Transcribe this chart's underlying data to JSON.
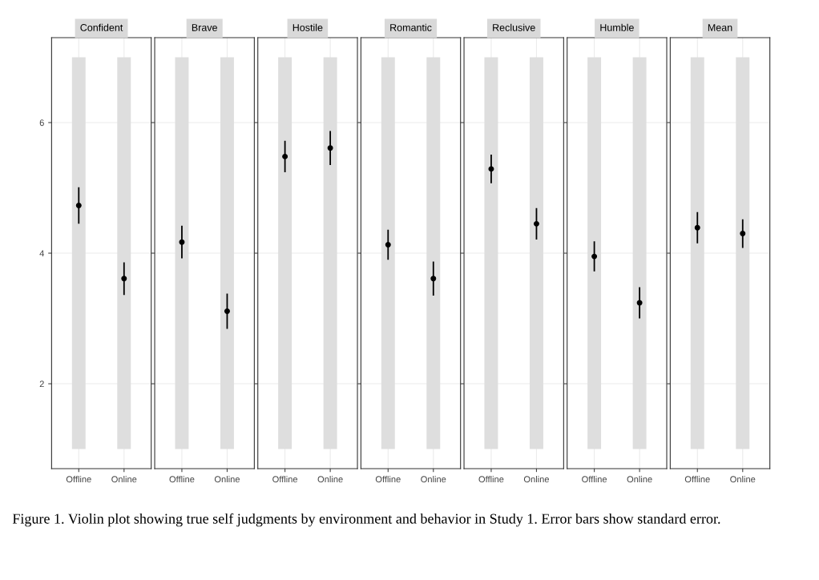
{
  "chart_data": [
    {
      "type": "scatter",
      "title": "Confident",
      "categories": [
        "Offline",
        "Online"
      ],
      "series": [
        {
          "color": "#000000",
          "values": [
            4.73,
            3.61
          ],
          "errors": [
            0.28,
            0.25
          ]
        }
      ],
      "ylim": [
        0.7,
        7.3
      ],
      "yticks": [
        2,
        4,
        6
      ],
      "grid": true,
      "marker": "circle",
      "annotations": [
        "Figure 1. Violin plot showing true self judgments by environment and behavior in Study 1. Error bars show standard error."
      ]
    },
    {
      "type": "scatter",
      "title": "Brave",
      "categories": [
        "Offline",
        "Online"
      ],
      "series": [
        {
          "color": "#000000",
          "values": [
            4.17,
            3.11
          ],
          "errors": [
            0.25,
            0.27
          ]
        }
      ],
      "ylim": [
        0.7,
        7.3
      ],
      "yticks": [
        2,
        4,
        6
      ],
      "grid": true,
      "marker": "circle",
      "tick_labels": "x"
    },
    {
      "type": "scatter",
      "title": "Hostile",
      "categories": [
        "Offline",
        "Online"
      ],
      "series": [
        {
          "color": "#000000",
          "values": [
            5.48,
            5.61
          ],
          "errors": [
            0.24,
            0.26
          ]
        }
      ],
      "ylim": [
        0.7,
        7.3
      ],
      "yticks": [
        2,
        4,
        6
      ],
      "grid": true,
      "marker": "circle",
      "tick_labels": "x"
    },
    {
      "type": "scatter",
      "title": "Romantic",
      "categories": [
        "Offline",
        "Online"
      ],
      "series": [
        {
          "color": "#000000",
          "values": [
            4.13,
            3.61
          ],
          "errors": [
            0.23,
            0.26
          ]
        }
      ],
      "ylim": [
        0.7,
        7.3
      ],
      "yticks": [
        2,
        4,
        6
      ],
      "grid": true,
      "marker": "circle",
      "tick_labels": "x"
    },
    {
      "type": "scatter",
      "title": "Reclusive",
      "categories": [
        "Offline",
        "Online"
      ],
      "series": [
        {
          "color": "#000000",
          "values": [
            5.29,
            4.45
          ],
          "errors": [
            0.22,
            0.24
          ]
        }
      ],
      "ylim": [
        0.7,
        7.3
      ],
      "yticks": [
        2,
        4,
        6
      ],
      "grid": true,
      "marker": "circle",
      "tick_labels": "x"
    },
    {
      "type": "scatter",
      "title": "Humble",
      "categories": [
        "Offline",
        "Online"
      ],
      "series": [
        {
          "color": "#000000",
          "values": [
            3.95,
            3.24
          ],
          "errors": [
            0.23,
            0.24
          ]
        }
      ],
      "ylim": [
        0.7,
        7.3
      ],
      "yticks": [
        2,
        4,
        6
      ],
      "grid": true,
      "marker": "circle",
      "tick_labels": "x"
    },
    {
      "type": "scatter",
      "title": "Mean",
      "categories": [
        "Offline",
        "Online"
      ],
      "series": [
        {
          "color": "#000000",
          "values": [
            4.39,
            4.3
          ],
          "errors": [
            0.24,
            0.22
          ]
        }
      ],
      "ylim": [
        0.7,
        7.3
      ],
      "yticks": [
        2,
        4,
        6
      ],
      "grid": true,
      "marker": "circle",
      "tick_labels": "x"
    }
  ]
}
